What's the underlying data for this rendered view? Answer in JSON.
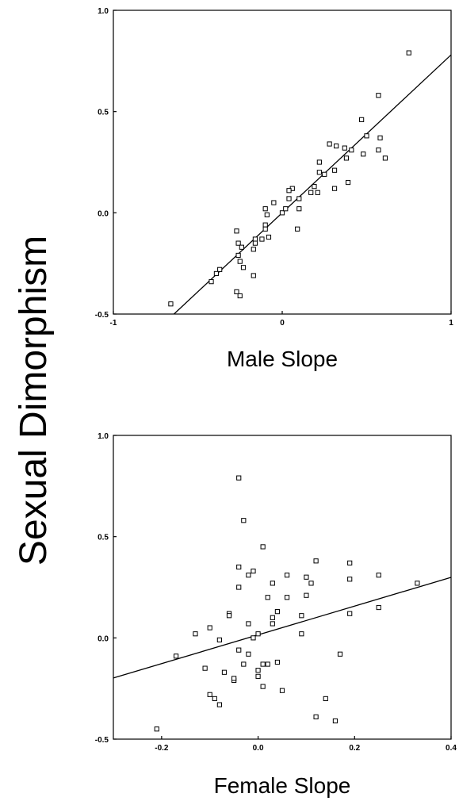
{
  "chart_data": [
    {
      "type": "scatter",
      "title": "",
      "xlabel": "Male Slope",
      "ylabel": "Sexual Dimorphism",
      "xlim": [
        -1,
        1
      ],
      "ylim": [
        -0.5,
        1.0
      ],
      "xticks": [
        "-1",
        "0",
        "1"
      ],
      "yticks": [
        "-0.5",
        "0.0",
        "0.5",
        "1.0"
      ],
      "grid": false,
      "fit_line": {
        "slope": 0.78,
        "intercept": 0.0
      },
      "points": [
        [
          0.75,
          0.79
        ],
        [
          0.57,
          0.58
        ],
        [
          0.47,
          0.46
        ],
        [
          0.5,
          0.38
        ],
        [
          0.58,
          0.37
        ],
        [
          0.57,
          0.31
        ],
        [
          0.61,
          0.27
        ],
        [
          0.28,
          0.34
        ],
        [
          0.32,
          0.33
        ],
        [
          0.37,
          0.32
        ],
        [
          0.41,
          0.31
        ],
        [
          0.38,
          0.27
        ],
        [
          0.48,
          0.29
        ],
        [
          0.22,
          0.25
        ],
        [
          0.31,
          0.21
        ],
        [
          0.22,
          0.2
        ],
        [
          0.25,
          0.19
        ],
        [
          0.39,
          0.15
        ],
        [
          0.31,
          0.12
        ],
        [
          0.19,
          0.13
        ],
        [
          0.17,
          0.1
        ],
        [
          0.21,
          0.1
        ],
        [
          0.06,
          0.12
        ],
        [
          0.04,
          0.11
        ],
        [
          -0.05,
          0.05
        ],
        [
          0.04,
          0.07
        ],
        [
          0.1,
          0.07
        ],
        [
          0.0,
          0.0
        ],
        [
          0.02,
          0.02
        ],
        [
          -0.1,
          0.02
        ],
        [
          -0.09,
          -0.01
        ],
        [
          0.1,
          0.02
        ],
        [
          -0.1,
          -0.06
        ],
        [
          -0.1,
          -0.08
        ],
        [
          0.09,
          -0.08
        ],
        [
          -0.27,
          -0.09
        ],
        [
          -0.12,
          -0.13
        ],
        [
          -0.08,
          -0.12
        ],
        [
          -0.16,
          -0.13
        ],
        [
          -0.16,
          -0.15
        ],
        [
          -0.26,
          -0.15
        ],
        [
          -0.17,
          -0.18
        ],
        [
          -0.24,
          -0.17
        ],
        [
          -0.26,
          -0.21
        ],
        [
          -0.25,
          -0.24
        ],
        [
          -0.23,
          -0.27
        ],
        [
          -0.37,
          -0.28
        ],
        [
          -0.39,
          -0.3
        ],
        [
          -0.42,
          -0.34
        ],
        [
          -0.17,
          -0.31
        ],
        [
          -0.27,
          -0.39
        ],
        [
          -0.25,
          -0.41
        ],
        [
          -0.66,
          -0.45
        ]
      ]
    },
    {
      "type": "scatter",
      "title": "",
      "xlabel": "Female Slope",
      "ylabel": "Sexual Dimorphism",
      "xlim": [
        -0.3,
        0.4
      ],
      "ylim": [
        -0.5,
        1.0
      ],
      "xticks": [
        "-0.2",
        "0.0",
        "0.2",
        "0.4"
      ],
      "yticks": [
        "-0.5",
        "0.0",
        "0.5",
        "1.0"
      ],
      "grid": false,
      "fit_line": {
        "slope": 0.71,
        "intercept": 0.015
      },
      "points": [
        [
          -0.04,
          0.79
        ],
        [
          -0.03,
          0.58
        ],
        [
          0.01,
          0.45
        ],
        [
          0.12,
          0.38
        ],
        [
          -0.04,
          0.35
        ],
        [
          0.19,
          0.37
        ],
        [
          -0.01,
          0.33
        ],
        [
          -0.02,
          0.31
        ],
        [
          0.06,
          0.31
        ],
        [
          0.1,
          0.3
        ],
        [
          0.25,
          0.31
        ],
        [
          0.33,
          0.27
        ],
        [
          0.03,
          0.27
        ],
        [
          0.11,
          0.27
        ],
        [
          0.19,
          0.29
        ],
        [
          -0.04,
          0.25
        ],
        [
          0.02,
          0.2
        ],
        [
          0.06,
          0.2
        ],
        [
          0.1,
          0.21
        ],
        [
          0.25,
          0.15
        ],
        [
          -0.06,
          0.12
        ],
        [
          -0.06,
          0.11
        ],
        [
          0.04,
          0.13
        ],
        [
          0.03,
          0.1
        ],
        [
          0.09,
          0.11
        ],
        [
          0.19,
          0.12
        ],
        [
          -0.02,
          0.07
        ],
        [
          0.03,
          0.07
        ],
        [
          -0.1,
          0.05
        ],
        [
          -0.13,
          0.02
        ],
        [
          0.0,
          0.02
        ],
        [
          0.09,
          0.02
        ],
        [
          -0.01,
          0.0
        ],
        [
          -0.17,
          -0.09
        ],
        [
          -0.08,
          -0.01
        ],
        [
          0.01,
          -0.13
        ],
        [
          0.02,
          -0.13
        ],
        [
          -0.03,
          -0.13
        ],
        [
          0.04,
          -0.12
        ],
        [
          0.17,
          -0.08
        ],
        [
          -0.04,
          -0.06
        ],
        [
          -0.02,
          -0.08
        ],
        [
          -0.11,
          -0.15
        ],
        [
          0.0,
          -0.16
        ],
        [
          0.0,
          -0.19
        ],
        [
          -0.05,
          -0.21
        ],
        [
          -0.05,
          -0.2
        ],
        [
          -0.07,
          -0.17
        ],
        [
          0.01,
          -0.24
        ],
        [
          0.05,
          -0.26
        ],
        [
          -0.1,
          -0.28
        ],
        [
          -0.09,
          -0.3
        ],
        [
          -0.08,
          -0.33
        ],
        [
          0.14,
          -0.3
        ],
        [
          0.12,
          -0.39
        ],
        [
          0.16,
          -0.41
        ],
        [
          -0.21,
          -0.45
        ]
      ]
    }
  ]
}
